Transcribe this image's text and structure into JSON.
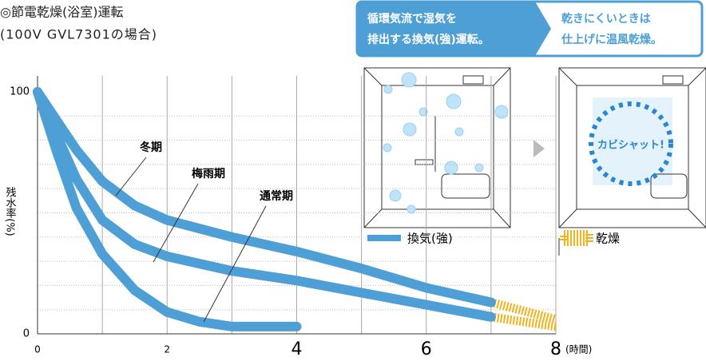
{
  "chart_data": {
    "type": "line",
    "title": "◎節電乾燥(浴室)運転",
    "subtitle": "(100V GVL7301の場合)",
    "y_label": "残水率(%)",
    "x_unit": "(時間)",
    "xlim": [
      0,
      8
    ],
    "ylim": [
      0,
      100
    ],
    "xticks": [
      0,
      2,
      4,
      6,
      8
    ],
    "yticks": [
      0,
      100
    ],
    "xgrid": [
      1,
      2,
      3,
      4,
      5,
      6,
      7,
      8
    ],
    "ygrid": [
      10,
      20,
      30,
      40,
      50,
      60,
      70,
      80,
      90
    ],
    "series": [
      {
        "name": "冬期",
        "x": [
          0,
          0.3,
          0.6,
          1,
          1.5,
          2,
          3,
          4,
          5,
          6,
          7
        ],
        "values": [
          100,
          88,
          76,
          63,
          53,
          47,
          40,
          34,
          27,
          19,
          13
        ],
        "dry_x": [
          7,
          8
        ],
        "dry_values": [
          13,
          6
        ]
      },
      {
        "name": "梅雨期",
        "x": [
          0,
          0.3,
          0.6,
          1,
          1.5,
          2,
          3,
          4,
          5,
          6,
          7
        ],
        "values": [
          100,
          82,
          64,
          47,
          37,
          32,
          26,
          22,
          17,
          12,
          7
        ],
        "dry_x": [
          7,
          8
        ],
        "dry_values": [
          7,
          3
        ]
      },
      {
        "name": "通常期",
        "x": [
          0,
          0.3,
          0.6,
          1,
          1.5,
          2,
          2.5,
          3,
          4
        ],
        "values": [
          100,
          75,
          52,
          33,
          18,
          9,
          5,
          3,
          3
        ]
      }
    ],
    "legend": [
      {
        "label": "換気(強)",
        "color": "#4d9fd5"
      },
      {
        "label": "乾燥",
        "color": "#f2b21c"
      }
    ]
  },
  "panels": {
    "left": {
      "lines": [
        "循環気流で湿気を",
        "排出する換気(強)運転。"
      ]
    },
    "right": {
      "lines": [
        "乾きにくいときは",
        "仕上げに温風乾燥。"
      ],
      "badge": "カビシャット!"
    }
  }
}
